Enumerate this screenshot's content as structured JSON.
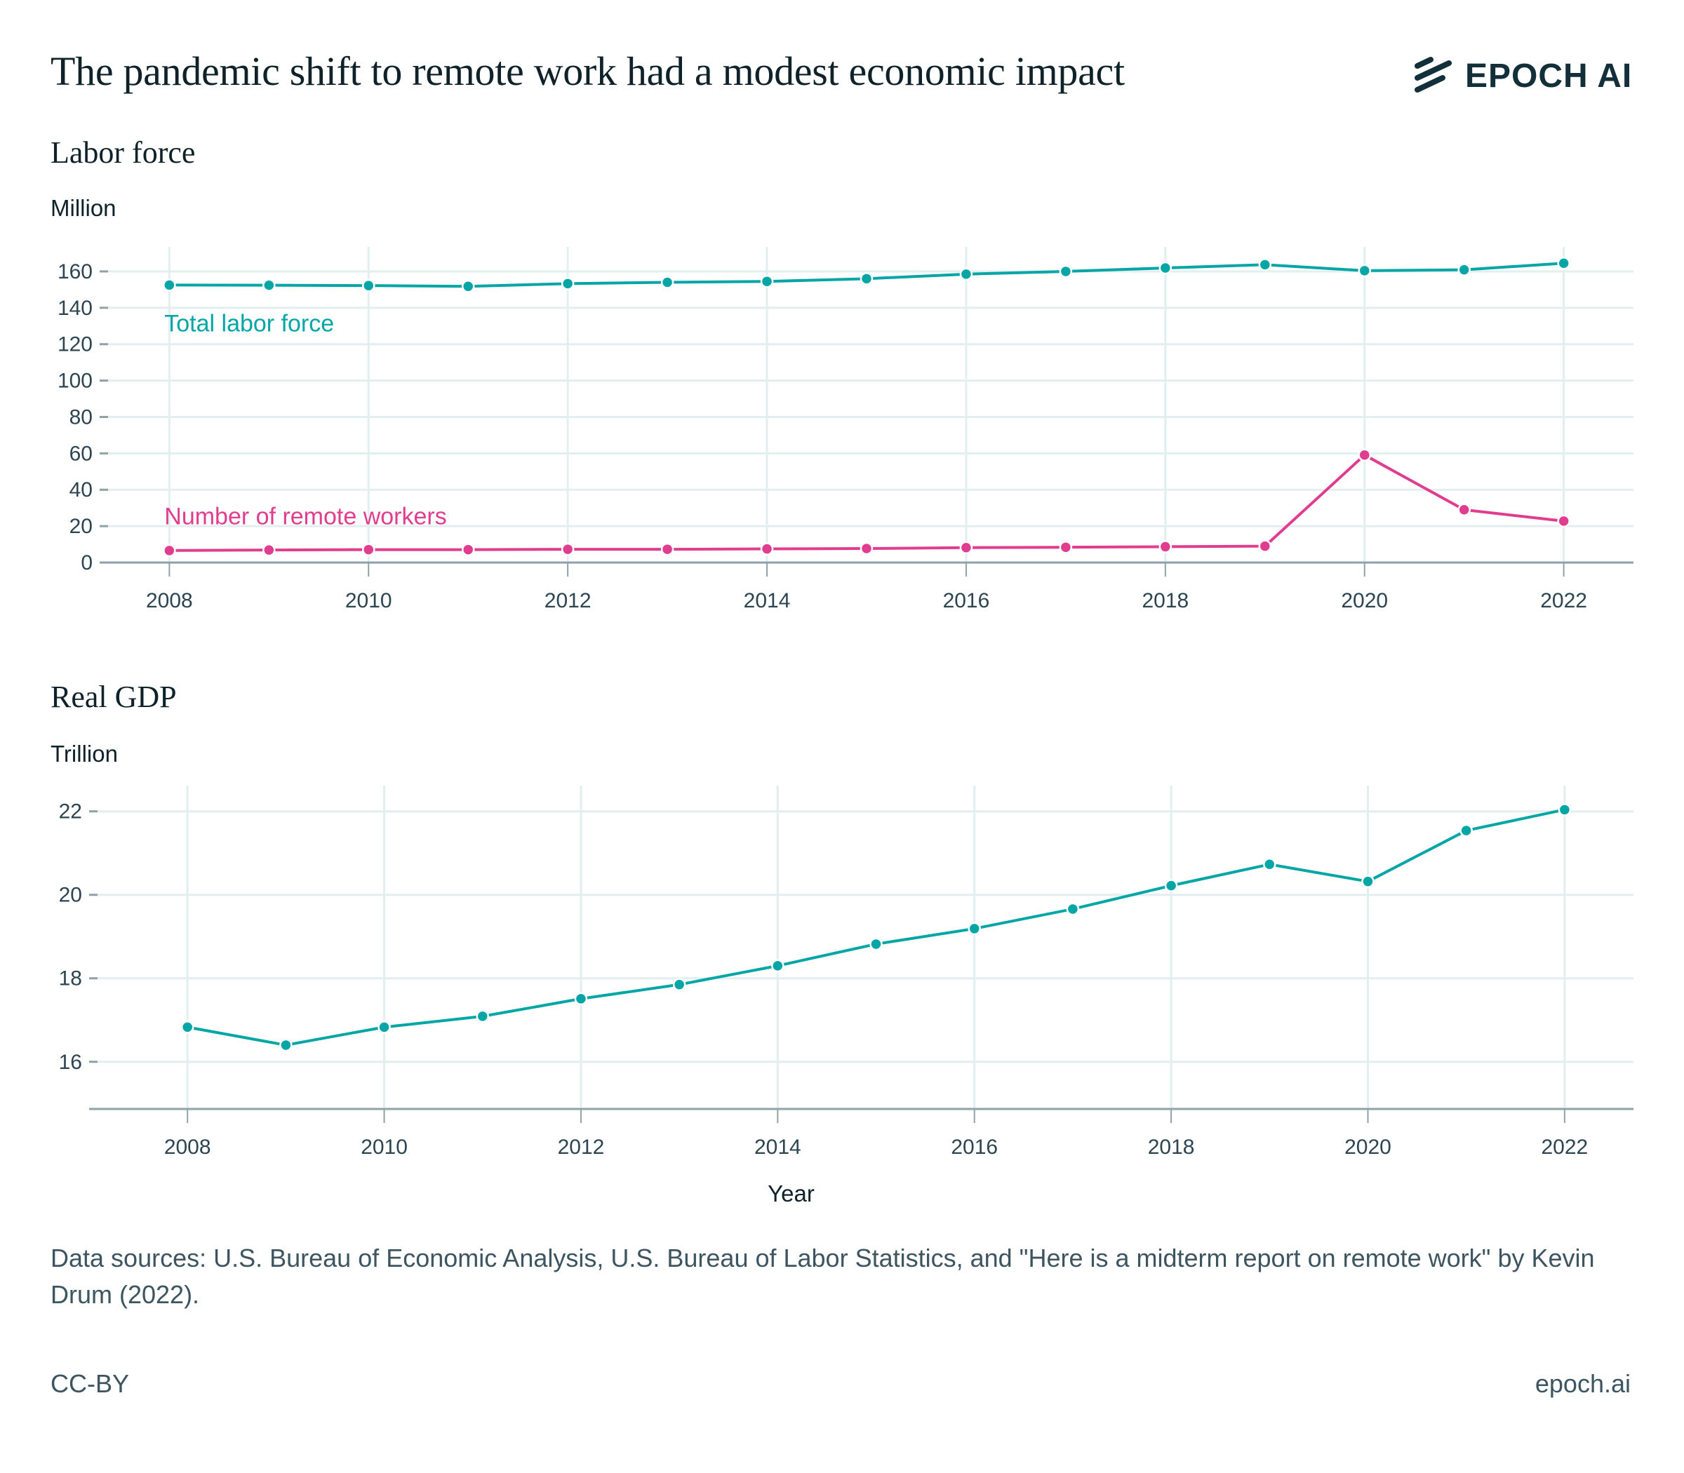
{
  "header": {
    "title": "The pandemic shift to remote work had a modest economic impact",
    "logo_text": "EPOCH AI",
    "logo_icon": "epoch-stripes-icon"
  },
  "colors": {
    "teal": "#00A5A6",
    "pink": "#E03D8F",
    "grid": "#E3EEEF",
    "axis": "#8FA2A8",
    "text": "#2C4550"
  },
  "chart_data": [
    {
      "type": "line",
      "title": "Labor force",
      "ylabel": "Million",
      "xlabel": "",
      "x": [
        2008,
        2009,
        2010,
        2011,
        2012,
        2013,
        2014,
        2015,
        2016,
        2017,
        2018,
        2019,
        2020,
        2021,
        2022
      ],
      "x_ticks": [
        "2008",
        "2010",
        "2012",
        "2014",
        "2016",
        "2018",
        "2020",
        "2022"
      ],
      "y_ticks": [
        "0",
        "20",
        "40",
        "60",
        "80",
        "100",
        "120",
        "140",
        "160"
      ],
      "ylim": [
        0,
        170
      ],
      "xlim": [
        2007.3,
        2022.7
      ],
      "grid": true,
      "series": [
        {
          "name": "Total labor force",
          "color": "#00A5A6",
          "values": [
            152.5,
            152.4,
            152.2,
            151.8,
            153.3,
            154.0,
            154.5,
            156.0,
            158.5,
            160.0,
            161.9,
            163.7,
            160.4,
            160.9,
            164.5
          ]
        },
        {
          "name": "Number of remote workers",
          "color": "#E03D8F",
          "values": [
            6.6,
            6.9,
            7.1,
            7.1,
            7.3,
            7.3,
            7.5,
            7.7,
            8.2,
            8.4,
            8.7,
            9.0,
            59.1,
            29.0,
            22.8
          ]
        }
      ]
    },
    {
      "type": "line",
      "title": "Real GDP",
      "ylabel": "Trillion",
      "xlabel": "Year",
      "x": [
        2008,
        2009,
        2010,
        2011,
        2012,
        2013,
        2014,
        2015,
        2016,
        2017,
        2018,
        2019,
        2020,
        2021,
        2022
      ],
      "x_ticks": [
        "2008",
        "2010",
        "2012",
        "2014",
        "2016",
        "2018",
        "2020",
        "2022"
      ],
      "y_ticks": [
        "16",
        "18",
        "20",
        "22"
      ],
      "ylim": [
        14.87,
        22.6
      ],
      "xlim": [
        2007.0,
        2022.7
      ],
      "grid": true,
      "series": [
        {
          "name": "Real GDP",
          "color": "#00A5A6",
          "values": [
            16.83,
            16.4,
            16.83,
            17.09,
            17.51,
            17.85,
            18.3,
            18.82,
            19.19,
            19.66,
            20.22,
            20.73,
            20.32,
            21.54,
            22.04
          ]
        }
      ]
    }
  ],
  "footer": {
    "sources": "Data sources: U.S. Bureau of Economic Analysis,  U.S. Bureau of Labor Statistics, and \"Here is a midterm report on remote work\" by Kevin Drum (2022).",
    "license": "CC-BY",
    "site": "epoch.ai"
  }
}
